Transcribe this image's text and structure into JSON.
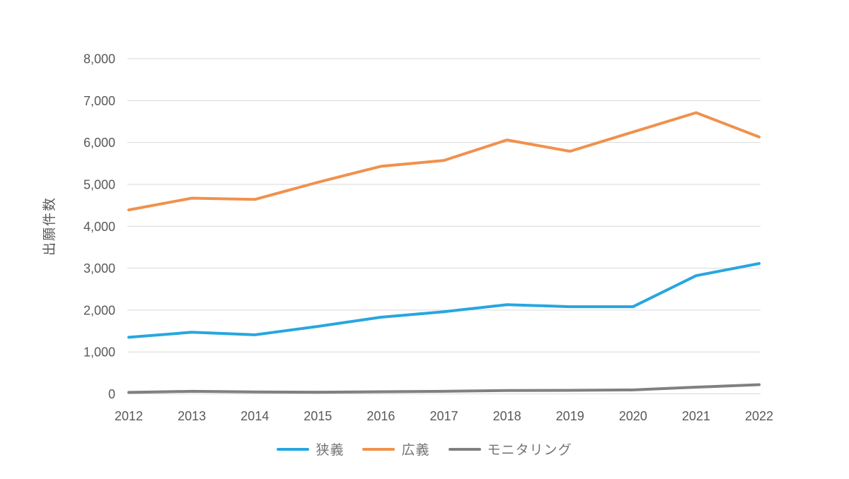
{
  "chart_data": {
    "type": "line",
    "title": "",
    "xlabel": "",
    "ylabel": "出願件数",
    "ylim": [
      0,
      8000
    ],
    "grid": "horizontal",
    "legend_position": "bottom",
    "y_ticks": [
      0,
      1000,
      2000,
      3000,
      4000,
      5000,
      6000,
      7000,
      8000
    ],
    "y_tick_labels": [
      "0",
      "1,000",
      "2,000",
      "3,000",
      "4,000",
      "5,000",
      "6,000",
      "7,000",
      "8,000"
    ],
    "categories": [
      "2012",
      "2013",
      "2014",
      "2015",
      "2016",
      "2017",
      "2018",
      "2019",
      "2020",
      "2021",
      "2022"
    ],
    "series": [
      {
        "name": "狭義",
        "color": "#27A6DF",
        "values": [
          1350,
          1470,
          1410,
          1610,
          1830,
          1960,
          2130,
          2080,
          2080,
          2820,
          3110
        ]
      },
      {
        "name": "広義",
        "color": "#F0914D",
        "values": [
          4390,
          4670,
          4640,
          5050,
          5430,
          5570,
          6060,
          5790,
          6250,
          6710,
          6130
        ]
      },
      {
        "name": "モニタリング",
        "color": "#808080",
        "values": [
          35,
          60,
          45,
          40,
          50,
          60,
          80,
          85,
          95,
          160,
          220
        ]
      }
    ],
    "colors": {
      "grid": "#D9D9D9",
      "tick_text": "#595959",
      "legend_text": "#757575",
      "background": "#FFFFFF"
    }
  }
}
